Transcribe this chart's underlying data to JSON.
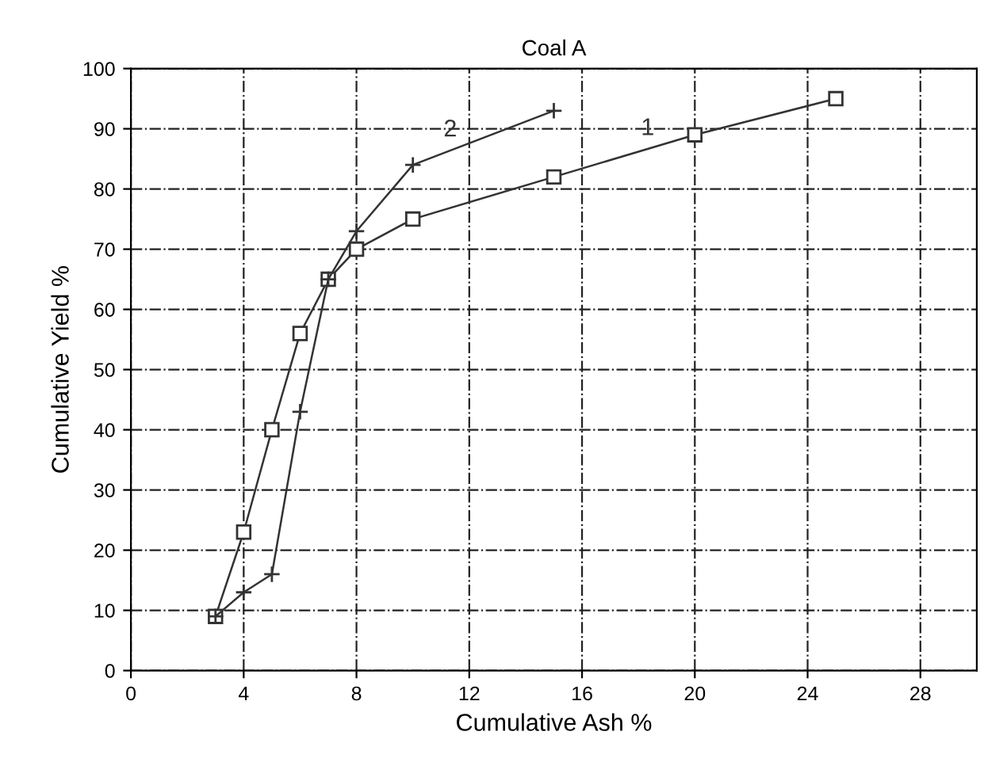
{
  "chart_data": {
    "type": "line",
    "title": "Coal A",
    "xlabel": "Cumulative Ash %",
    "ylabel": "Cumulative Yield %",
    "series": [
      {
        "name": "1",
        "color": "#333333",
        "marker": "square",
        "x": [
          3,
          4,
          5,
          6,
          7,
          8,
          10,
          15,
          20,
          25
        ],
        "values": [
          9,
          23,
          40,
          56,
          65,
          70,
          75,
          82,
          89,
          95
        ]
      },
      {
        "name": "2",
        "color": "#333333",
        "marker": "cross",
        "x": [
          3,
          4,
          5,
          6,
          7,
          8,
          10,
          15
        ],
        "values": [
          9,
          13,
          16,
          43,
          65,
          73,
          84,
          93
        ]
      }
    ],
    "xlim": [
      0,
      30
    ],
    "xticks": [
      0,
      4,
      8,
      12,
      16,
      20,
      24,
      28
    ],
    "ylim": [
      0,
      100
    ],
    "yticks": [
      0,
      10,
      20,
      30,
      40,
      50,
      60,
      70,
      80,
      90,
      100
    ],
    "grid": true,
    "line_style": "solid"
  }
}
